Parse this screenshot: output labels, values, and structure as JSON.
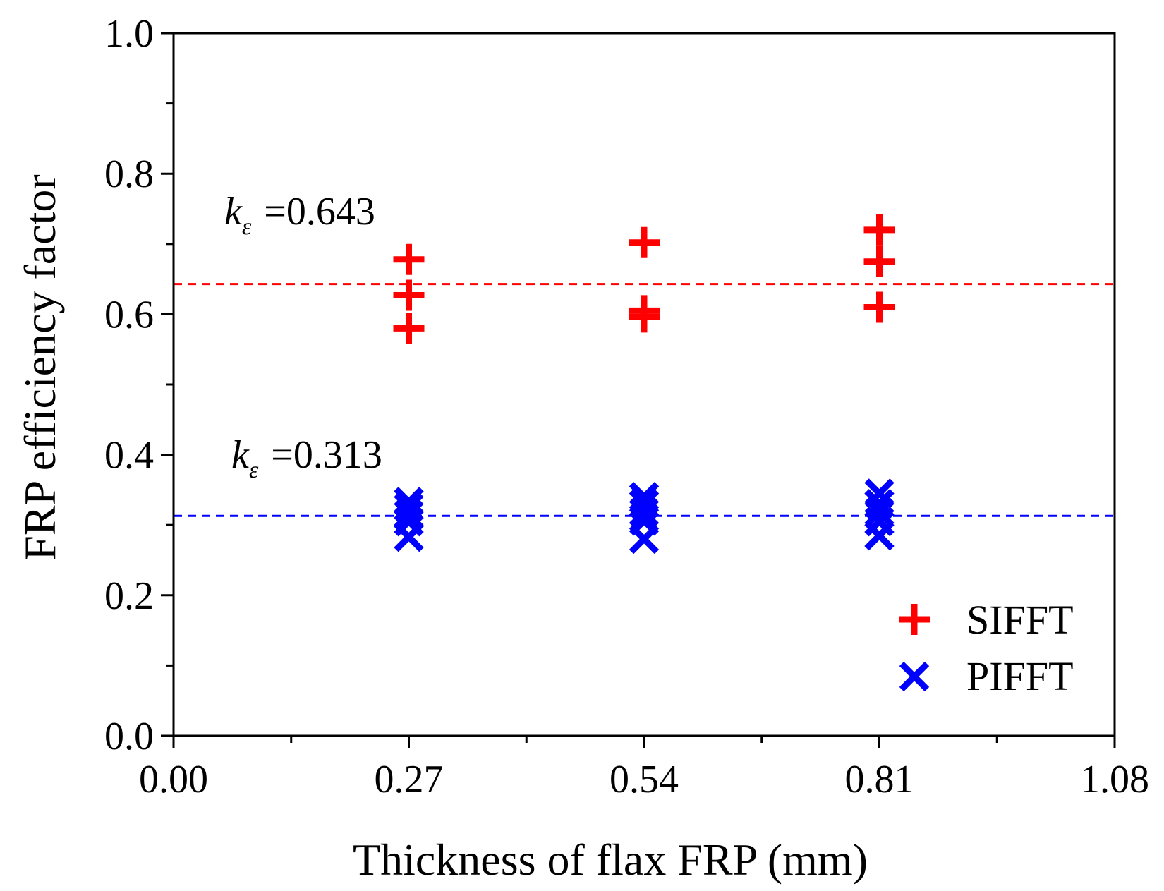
{
  "chart_data": {
    "type": "scatter",
    "title": "",
    "xlabel": "Thickness of flax FRP (mm)",
    "ylabel": "FRP efficiency factor",
    "xlim": [
      0.0,
      1.08
    ],
    "ylim": [
      0.0,
      1.0
    ],
    "xticks": [
      0.0,
      0.27,
      0.54,
      0.81,
      1.08
    ],
    "xtick_labels": [
      "0.00",
      "0.27",
      "0.54",
      "0.81",
      "1.08"
    ],
    "yticks": [
      0.0,
      0.2,
      0.4,
      0.6,
      0.8,
      1.0
    ],
    "ytick_labels": [
      "0.0",
      "0.2",
      "0.4",
      "0.6",
      "0.8",
      "1.0"
    ],
    "x_minor_step": 0.135,
    "y_minor_step": 0.1,
    "grid": false,
    "legend_position": "bottom-right",
    "series": [
      {
        "name": "SIFFT",
        "marker": "plus",
        "color": "#ff0000",
        "points": [
          {
            "x": 0.27,
            "y": 0.678
          },
          {
            "x": 0.27,
            "y": 0.627
          },
          {
            "x": 0.27,
            "y": 0.58
          },
          {
            "x": 0.54,
            "y": 0.702
          },
          {
            "x": 0.54,
            "y": 0.605
          },
          {
            "x": 0.54,
            "y": 0.596
          },
          {
            "x": 0.81,
            "y": 0.72
          },
          {
            "x": 0.81,
            "y": 0.675
          },
          {
            "x": 0.81,
            "y": 0.61
          }
        ]
      },
      {
        "name": "PIFFT",
        "marker": "cross",
        "color": "#0000ff",
        "points": [
          {
            "x": 0.27,
            "y": 0.333
          },
          {
            "x": 0.27,
            "y": 0.325
          },
          {
            "x": 0.27,
            "y": 0.315
          },
          {
            "x": 0.27,
            "y": 0.305
          },
          {
            "x": 0.27,
            "y": 0.283
          },
          {
            "x": 0.54,
            "y": 0.34
          },
          {
            "x": 0.54,
            "y": 0.33
          },
          {
            "x": 0.54,
            "y": 0.318
          },
          {
            "x": 0.54,
            "y": 0.306
          },
          {
            "x": 0.54,
            "y": 0.28
          },
          {
            "x": 0.81,
            "y": 0.345
          },
          {
            "x": 0.81,
            "y": 0.33
          },
          {
            "x": 0.81,
            "y": 0.318
          },
          {
            "x": 0.81,
            "y": 0.305
          },
          {
            "x": 0.81,
            "y": 0.285
          }
        ]
      }
    ],
    "reference_lines": [
      {
        "value": 0.643,
        "color": "#ff0000",
        "style": "dashed",
        "label_symbol": "k",
        "label_subscript": "ε",
        "label_text": "=0.643"
      },
      {
        "value": 0.313,
        "color": "#0000ff",
        "style": "dashed",
        "label_symbol": "k",
        "label_subscript": "ε",
        "label_text": "=0.313"
      }
    ]
  }
}
